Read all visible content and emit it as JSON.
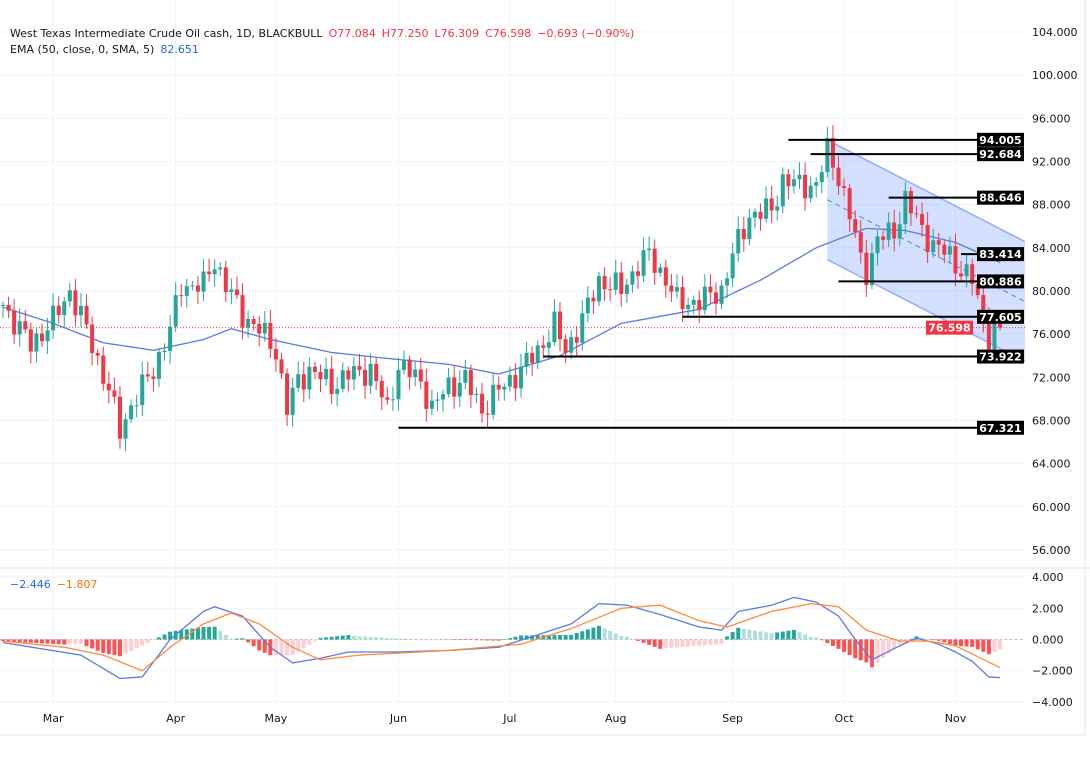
{
  "header": {
    "symbol": "West Texas Intermediate Crude Oil cash, 1D, BLACKBULL",
    "open": "O77.084",
    "high": "H77.250",
    "low": "L76.309",
    "close": "C76.598",
    "change": "−0.693 (−0.90%)",
    "ema_label": "EMA (50, close, 0, SMA, 5)",
    "ema_value": "82.651"
  },
  "macd_header": {
    "macd_value": "−2.446",
    "signal_value": "−1.807"
  },
  "colors": {
    "up": "#26a69a",
    "down": "#f23645",
    "ema": "#5b7be0",
    "signal": "#ff8a3d",
    "channel": "#2962ff"
  },
  "chart_data": {
    "type": "candlestick",
    "title": "West Texas Intermediate Crude Oil cash, 1D",
    "price_axis": {
      "ticks": [
        "104.000",
        "100.000",
        "96.000",
        "92.000",
        "88.000",
        "84.000",
        "80.000",
        "76.000",
        "72.000",
        "68.000",
        "64.000",
        "60.000",
        "56.000"
      ],
      "ylim": [
        56,
        104
      ]
    },
    "time_axis": {
      "ticks": [
        "Mar",
        "Apr",
        "May",
        "Jun",
        "Jul",
        "Aug",
        "Sep",
        "Oct",
        "Nov"
      ],
      "tick_bars": [
        9,
        31,
        49,
        71,
        91,
        110,
        131,
        151,
        171
      ]
    },
    "close_path": [
      [
        0,
        78.7
      ],
      [
        5,
        75
      ],
      [
        9,
        77.3
      ],
      [
        12,
        80
      ],
      [
        15,
        76.4
      ],
      [
        19,
        70.8
      ],
      [
        21,
        67
      ],
      [
        23,
        69.4
      ],
      [
        27,
        72.7
      ],
      [
        30,
        76.4
      ],
      [
        32,
        80.5
      ],
      [
        36,
        80.5
      ],
      [
        38,
        82.9
      ],
      [
        40,
        80.5
      ],
      [
        43,
        77.8
      ],
      [
        46,
        76.4
      ],
      [
        49,
        74.5
      ],
      [
        51,
        69
      ],
      [
        53,
        71.7
      ],
      [
        55,
        72.7
      ],
      [
        59,
        71.3
      ],
      [
        62,
        72.2
      ],
      [
        66,
        72.7
      ],
      [
        69,
        69
      ],
      [
        71,
        73.1
      ],
      [
        75,
        71.7
      ],
      [
        77,
        69
      ],
      [
        80,
        71.3
      ],
      [
        83,
        71.7
      ],
      [
        86,
        69
      ],
      [
        89,
        70.8
      ],
      [
        93,
        72.7
      ],
      [
        96,
        74.5
      ],
      [
        99,
        76.8
      ],
      [
        101,
        74.5
      ],
      [
        104,
        77.3
      ],
      [
        107,
        81
      ],
      [
        111,
        80.1
      ],
      [
        114,
        82.4
      ],
      [
        116,
        83.3
      ],
      [
        119,
        81.1
      ],
      [
        121,
        79
      ],
      [
        125,
        79
      ],
      [
        129,
        80.1
      ],
      [
        131,
        83.3
      ],
      [
        134,
        87
      ],
      [
        138,
        87.5
      ],
      [
        140,
        90.3
      ],
      [
        143,
        89.8
      ],
      [
        146,
        89.8
      ],
      [
        148,
        93
      ],
      [
        150,
        90.7
      ],
      [
        152,
        87
      ],
      [
        154,
        82.9
      ],
      [
        155,
        81.9
      ],
      [
        157,
        84.7
      ],
      [
        160,
        85.6
      ],
      [
        162,
        88.4
      ],
      [
        164,
        86.6
      ],
      [
        167,
        84.2
      ],
      [
        170,
        83.3
      ],
      [
        172,
        81.9
      ],
      [
        174,
        81
      ],
      [
        176,
        77.3
      ],
      [
        177,
        75.9
      ],
      [
        179,
        76.598
      ]
    ],
    "ema50": [
      [
        0,
        78.5
      ],
      [
        9,
        77
      ],
      [
        18,
        75.2
      ],
      [
        27,
        74.5
      ],
      [
        36,
        75.5
      ],
      [
        41,
        76.5
      ],
      [
        48,
        75.5
      ],
      [
        59,
        74.3
      ],
      [
        68,
        73.8
      ],
      [
        80,
        73.2
      ],
      [
        89,
        72.3
      ],
      [
        100,
        74
      ],
      [
        111,
        77
      ],
      [
        125,
        78.3
      ],
      [
        136,
        81
      ],
      [
        146,
        84
      ],
      [
        155,
        85.8
      ],
      [
        162,
        85.6
      ],
      [
        171,
        84.5
      ],
      [
        179,
        82.651
      ]
    ],
    "levels": [
      {
        "price": 94.005,
        "label": "94.005",
        "from_bar": 141
      },
      {
        "price": 92.684,
        "label": "92.684",
        "from_bar": 145
      },
      {
        "price": 88.646,
        "label": "88.646",
        "from_bar": 159
      },
      {
        "price": 83.414,
        "label": "83.414",
        "from_bar": 172
      },
      {
        "price": 80.886,
        "label": "80.886",
        "from_bar": 150
      },
      {
        "price": 77.605,
        "label": "77.605",
        "from_bar": 122
      },
      {
        "price": 73.922,
        "label": "73.922",
        "from_bar": 97
      },
      {
        "price": 67.321,
        "label": "67.321",
        "from_bar": 71
      }
    ],
    "current_price": {
      "price": 76.598,
      "label": "76.598"
    },
    "channel": {
      "start_bar": 148,
      "end_bar": 183,
      "upper": [
        94.0,
        84.7
      ],
      "lower": [
        82.9,
        73.6
      ]
    },
    "macd": {
      "ticks": [
        "4.000",
        "2.000",
        "0.000",
        "−2.000",
        "−4.000"
      ],
      "ylim": [
        -4,
        4
      ],
      "macd_line": [
        [
          0,
          -0.2
        ],
        [
          7,
          -0.6
        ],
        [
          14,
          -1.0
        ],
        [
          21,
          -2.5
        ],
        [
          25,
          -2.4
        ],
        [
          30,
          0
        ],
        [
          36,
          1.8
        ],
        [
          38,
          2.1
        ],
        [
          43,
          1.5
        ],
        [
          48,
          -0.5
        ],
        [
          52,
          -1.5
        ],
        [
          57,
          -1.2
        ],
        [
          62,
          -0.8
        ],
        [
          71,
          -0.8
        ],
        [
          80,
          -0.7
        ],
        [
          89,
          -0.5
        ],
        [
          96,
          0.3
        ],
        [
          102,
          1.0
        ],
        [
          107,
          2.3
        ],
        [
          112,
          2.2
        ],
        [
          118,
          1.6
        ],
        [
          125,
          0.8
        ],
        [
          129,
          0.6
        ],
        [
          132,
          1.8
        ],
        [
          138,
          2.2
        ],
        [
          142,
          2.7
        ],
        [
          146,
          2.4
        ],
        [
          150,
          1.5
        ],
        [
          153,
          0
        ],
        [
          156,
          -1.3
        ],
        [
          161,
          -0.4
        ],
        [
          164,
          0.1
        ],
        [
          168,
          -0.3
        ],
        [
          171,
          -0.8
        ],
        [
          174,
          -1.4
        ],
        [
          177,
          -2.4
        ],
        [
          179,
          -2.446
        ]
      ],
      "signal_line": [
        [
          0,
          -0.1
        ],
        [
          11,
          -0.5
        ],
        [
          18,
          -1.0
        ],
        [
          25,
          -2.0
        ],
        [
          30,
          -0.5
        ],
        [
          36,
          1.0
        ],
        [
          41,
          1.7
        ],
        [
          46,
          1.0
        ],
        [
          52,
          -0.5
        ],
        [
          57,
          -1.3
        ],
        [
          64,
          -1.0
        ],
        [
          80,
          -0.7
        ],
        [
          93,
          -0.3
        ],
        [
          102,
          0.7
        ],
        [
          111,
          2.0
        ],
        [
          118,
          2.2
        ],
        [
          125,
          1.2
        ],
        [
          130,
          0.8
        ],
        [
          138,
          1.8
        ],
        [
          145,
          2.3
        ],
        [
          150,
          2.1
        ],
        [
          155,
          0.6
        ],
        [
          161,
          -0.1
        ],
        [
          166,
          -0.1
        ],
        [
          171,
          -0.4
        ],
        [
          179,
          -1.807
        ]
      ]
    }
  }
}
